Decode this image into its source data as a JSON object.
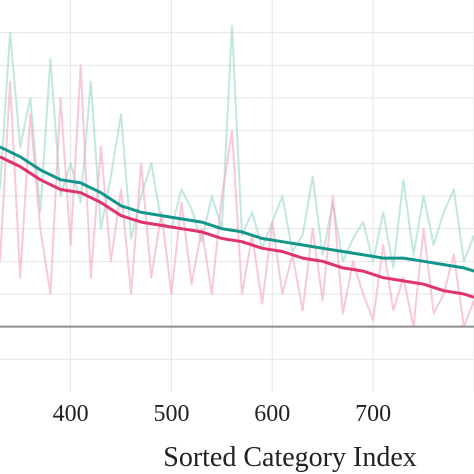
{
  "chart_data": {
    "type": "line",
    "xlabel": "Sorted Category Index",
    "ylabel": "",
    "title": "",
    "xlim": [
      330,
      800
    ],
    "ylim": [
      0,
      1.2
    ],
    "x_ticks": [
      400,
      500,
      600,
      700
    ],
    "x_tick_labels": [
      "400",
      "500",
      "600",
      "700"
    ],
    "y_gridlines": [
      0.1,
      0.2,
      0.3,
      0.4,
      0.5,
      0.6,
      0.7,
      0.8,
      0.9,
      1.0,
      1.1
    ],
    "baseline_y": 0.2,
    "grid": true,
    "legend": "none",
    "series": [
      {
        "role": "raw",
        "color": "#8fd3cc",
        "opacity": 0.55,
        "x": [
          330,
          340,
          350,
          360,
          370,
          380,
          390,
          400,
          410,
          420,
          430,
          440,
          450,
          460,
          470,
          480,
          490,
          500,
          510,
          520,
          530,
          540,
          550,
          560,
          570,
          580,
          590,
          600,
          610,
          620,
          630,
          640,
          650,
          660,
          670,
          680,
          690,
          700,
          710,
          720,
          730,
          740,
          750,
          760,
          770,
          780,
          790,
          800
        ],
        "values": [
          0.62,
          1.1,
          0.75,
          0.9,
          0.55,
          1.02,
          0.6,
          0.7,
          0.58,
          0.95,
          0.5,
          0.66,
          0.85,
          0.47,
          0.6,
          0.7,
          0.52,
          0.5,
          0.62,
          0.56,
          0.46,
          0.6,
          0.5,
          1.12,
          0.48,
          0.55,
          0.44,
          0.52,
          0.6,
          0.43,
          0.48,
          0.66,
          0.42,
          0.58,
          0.4,
          0.47,
          0.52,
          0.4,
          0.55,
          0.38,
          0.65,
          0.42,
          0.6,
          0.45,
          0.55,
          0.62,
          0.4,
          0.48
        ]
      },
      {
        "role": "raw",
        "color": "#f5a3c0",
        "opacity": 0.6,
        "x": [
          330,
          340,
          350,
          360,
          370,
          380,
          390,
          400,
          410,
          420,
          430,
          440,
          450,
          460,
          470,
          480,
          490,
          500,
          510,
          520,
          530,
          540,
          550,
          560,
          570,
          580,
          590,
          600,
          610,
          620,
          630,
          640,
          650,
          660,
          670,
          680,
          690,
          700,
          710,
          720,
          730,
          740,
          750,
          760,
          770,
          780,
          790,
          800
        ],
        "values": [
          0.4,
          0.95,
          0.35,
          0.85,
          0.5,
          0.3,
          0.9,
          0.45,
          1.0,
          0.35,
          0.75,
          0.4,
          0.62,
          0.3,
          0.7,
          0.35,
          0.55,
          0.3,
          0.58,
          0.33,
          0.5,
          0.3,
          0.6,
          0.8,
          0.3,
          0.48,
          0.27,
          0.52,
          0.3,
          0.42,
          0.25,
          0.5,
          0.28,
          0.6,
          0.24,
          0.4,
          0.3,
          0.22,
          0.45,
          0.25,
          0.35,
          0.2,
          0.5,
          0.24,
          0.3,
          0.42,
          0.2,
          0.28
        ]
      },
      {
        "role": "smoothed",
        "color": "#12968a",
        "x": [
          330,
          350,
          370,
          390,
          410,
          430,
          450,
          470,
          490,
          510,
          530,
          550,
          570,
          590,
          610,
          630,
          650,
          670,
          690,
          710,
          730,
          750,
          770,
          790,
          800
        ],
        "values": [
          0.75,
          0.72,
          0.68,
          0.65,
          0.64,
          0.61,
          0.57,
          0.55,
          0.54,
          0.53,
          0.52,
          0.5,
          0.49,
          0.47,
          0.46,
          0.45,
          0.44,
          0.43,
          0.42,
          0.41,
          0.41,
          0.4,
          0.39,
          0.38,
          0.37
        ]
      },
      {
        "role": "smoothed",
        "color": "#e0336c",
        "x": [
          330,
          350,
          370,
          390,
          410,
          430,
          450,
          470,
          490,
          510,
          530,
          550,
          570,
          590,
          610,
          630,
          650,
          670,
          690,
          710,
          730,
          750,
          770,
          790,
          800
        ],
        "values": [
          0.72,
          0.69,
          0.65,
          0.62,
          0.61,
          0.58,
          0.54,
          0.52,
          0.51,
          0.5,
          0.49,
          0.47,
          0.46,
          0.44,
          0.43,
          0.41,
          0.4,
          0.38,
          0.37,
          0.35,
          0.34,
          0.33,
          0.31,
          0.3,
          0.29
        ]
      }
    ]
  }
}
